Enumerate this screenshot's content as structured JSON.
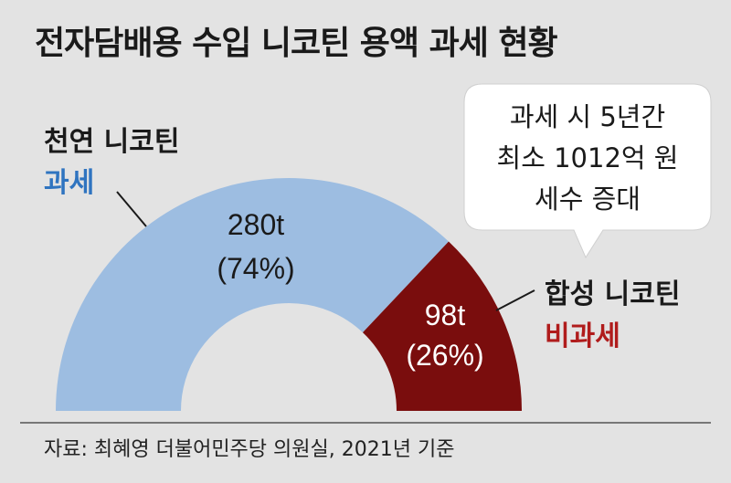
{
  "title": "전자담배용 수입 니코틴 용액 과세 현황",
  "source": "자료: 최혜영 더불어민주당 의원실, 2021년 기준",
  "callout": {
    "lines": [
      "과세 시 5년간",
      "최소 1012억 원",
      "세수 증대"
    ]
  },
  "colors": {
    "taxed": "#9dbde1",
    "untaxed": "#7a0d0d",
    "taxed_label": "#2f74c0",
    "untaxed_label": "#b01c1c",
    "background": "#e3e3e3"
  },
  "chart_data": {
    "type": "pie",
    "style": "semicircle-donut",
    "slices": [
      {
        "name": "천연 니코틴",
        "status": "과세",
        "value": 280,
        "value_label": "280t",
        "percent": 74,
        "percent_label": "(74%)"
      },
      {
        "name": "합성 니코틴",
        "status": "비과세",
        "value": 98,
        "value_label": "98t",
        "percent": 26,
        "percent_label": "(26%)"
      }
    ]
  }
}
